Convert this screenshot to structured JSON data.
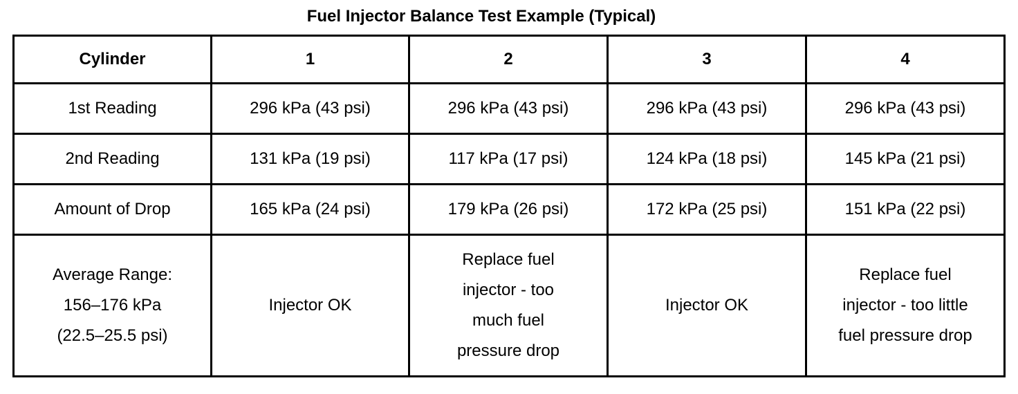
{
  "title": "Fuel Injector Balance Test Example (Typical)",
  "table": {
    "headers": [
      "Cylinder",
      "1",
      "2",
      "3",
      "4"
    ],
    "rows": [
      {
        "label": "1st Reading",
        "cells": [
          "296 kPa (43 psi)",
          "296 kPa (43 psi)",
          "296 kPa (43 psi)",
          "296 kPa (43 psi)"
        ]
      },
      {
        "label": "2nd Reading",
        "cells": [
          "131 kPa (19 psi)",
          "117 kPa (17 psi)",
          "124 kPa (18 psi)",
          "145 kPa (21 psi)"
        ]
      },
      {
        "label": "Amount of Drop",
        "cells": [
          "165 kPa (24 psi)",
          "179 kPa (26 psi)",
          "172 kPa (25 psi)",
          "151 kPa (22 psi)"
        ]
      },
      {
        "label": "Average Range:\n156–176 kPa\n(22.5–25.5 psi)",
        "cells": [
          "Injector OK",
          "Replace fuel\ninjector - too\nmuch fuel\npressure drop",
          "Injector OK",
          "Replace fuel\ninjector - too little\nfuel pressure drop"
        ]
      }
    ]
  }
}
